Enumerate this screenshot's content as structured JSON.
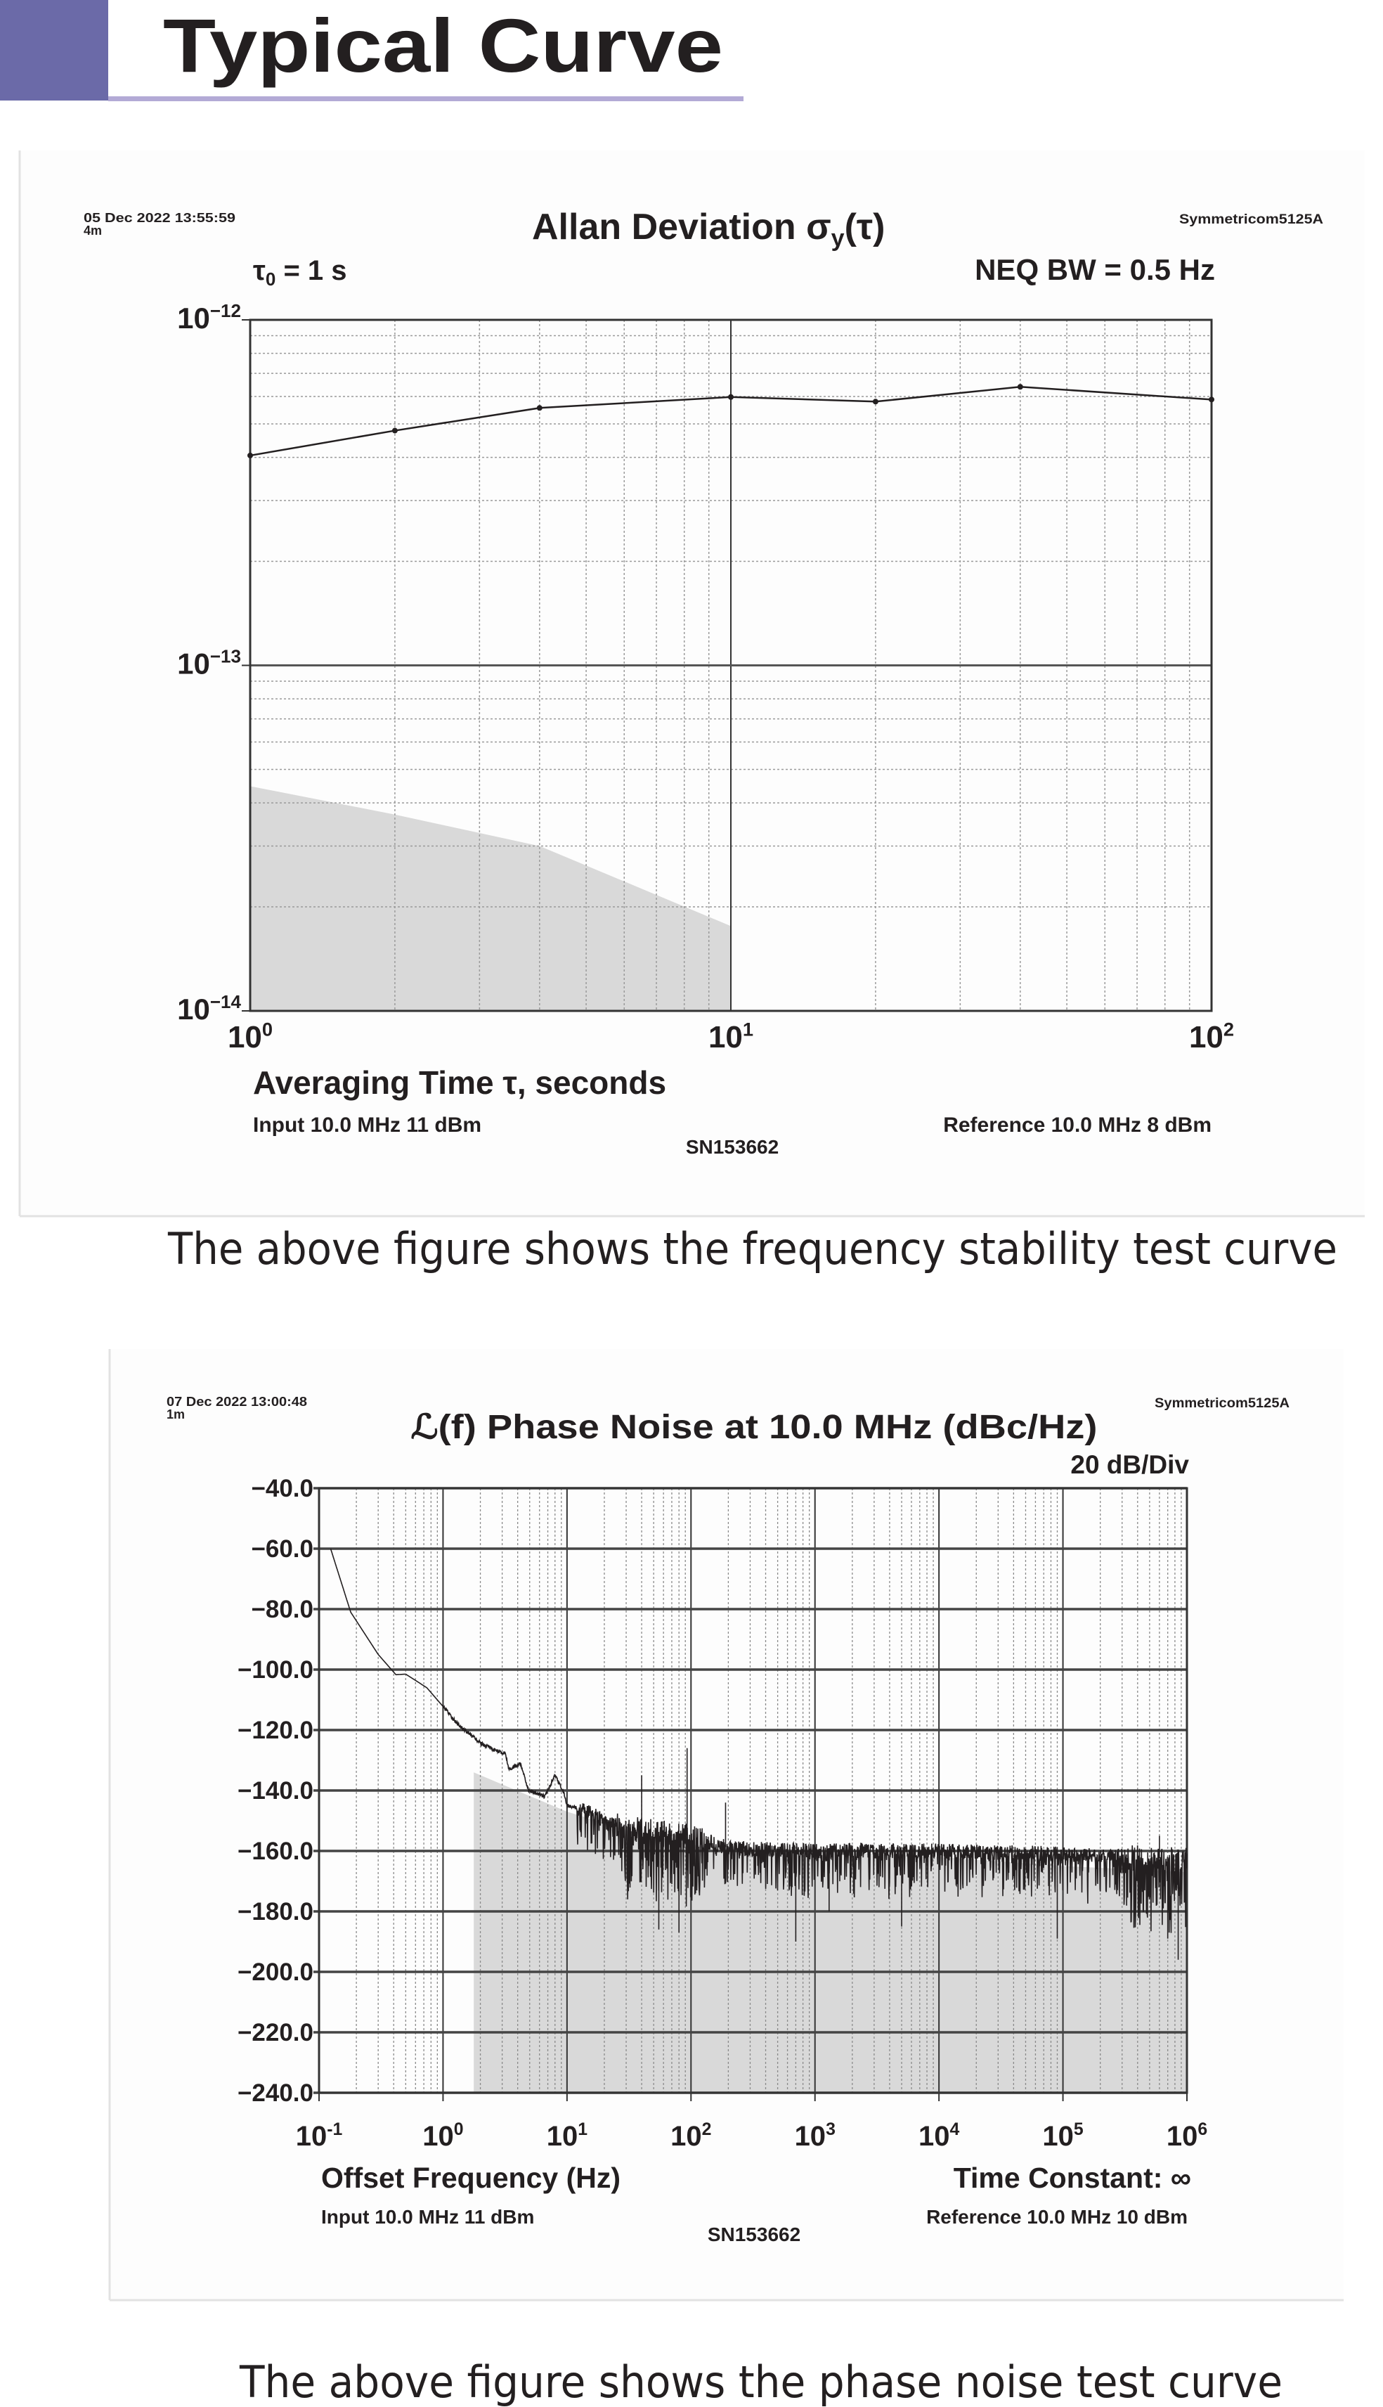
{
  "header": {
    "title": "Typical Curve",
    "accent_color": "#6b6aa8",
    "underline_color": "#b3aad6"
  },
  "captions": {
    "stability": "The above figure shows the frequency stability test curve",
    "phase_noise": "The above figure shows the phase noise test curve"
  },
  "chart_data": [
    {
      "type": "line",
      "title": "Allan Deviation σ",
      "title_sub": "y",
      "title_tail": "(τ)",
      "timestamp": "05 Dec 2022 13:55:59",
      "duration": "4m",
      "instrument": "Symmetricom5125A",
      "tau0_symbol": "τ",
      "tau0_sub": "0",
      "tau0_value": " = 1 s",
      "bandwidth": "NEQ BW = 0.5 Hz",
      "xlabel": "Averaging Time τ, seconds",
      "input": "Input 10.0 MHz 11 dBm",
      "reference": "Reference 10.0 MHz 8 dBm",
      "serial": "SN153662",
      "x_scale": "log",
      "y_scale": "log",
      "xlim": [
        1,
        100
      ],
      "ylim": [
        1e-14,
        1e-12
      ],
      "grid": true,
      "x_ticks": [
        {
          "base": "10",
          "exp": "0"
        },
        {
          "base": "10",
          "exp": "1"
        },
        {
          "base": "10",
          "exp": "2"
        }
      ],
      "y_ticks": [
        {
          "base": "10",
          "exp": "−12"
        },
        {
          "base": "10",
          "exp": "−13"
        },
        {
          "base": "10",
          "exp": "−14"
        }
      ],
      "series": [
        {
          "x": [
            1,
            2,
            4,
            10,
            20,
            40,
            100
          ],
          "y": [
            4.05e-13,
            4.78e-13,
            5.56e-13,
            5.98e-13,
            5.8e-13,
            6.4e-13,
            5.88e-13
          ],
          "color": "#231f20"
        }
      ],
      "noise_floor": {
        "x": [
          1,
          2,
          4,
          10
        ],
        "y": [
          4.47e-14,
          3.7e-14,
          3e-14,
          1.76e-14
        ],
        "color": "#d9d9d9"
      }
    },
    {
      "type": "line",
      "title": "ℒ(f) Phase Noise at 10.0 MHz (dBc/Hz)",
      "timestamp": "07 Dec 2022 13:00:48",
      "duration": "1m",
      "instrument": "Symmetricom5125A",
      "scale": "20 dB/Div",
      "xlabel": "Offset Frequency (Hz)",
      "time_constant": "Time Constant: ∞",
      "input": "Input 10.0 MHz 11 dBm",
      "reference": "Reference 10.0 MHz 10 dBm",
      "serial": "SN153662",
      "x_scale": "log",
      "xlim": [
        0.1,
        1000000
      ],
      "ylim": [
        -240,
        -40
      ],
      "grid": true,
      "x_ticks": [
        {
          "base": "10",
          "exp": "-1"
        },
        {
          "base": "10",
          "exp": "0"
        },
        {
          "base": "10",
          "exp": "1"
        },
        {
          "base": "10",
          "exp": "2"
        },
        {
          "base": "10",
          "exp": "3"
        },
        {
          "base": "10",
          "exp": "4"
        },
        {
          "base": "10",
          "exp": "5"
        },
        {
          "base": "10",
          "exp": "6"
        }
      ],
      "y_ticks": [
        "-40.0",
        "-60.0",
        "-80.0",
        "-100.0",
        "-120.0",
        "-140.0",
        "-160.0",
        "-180.0",
        "-200.0",
        "-220.0",
        "-240.0"
      ],
      "series": [
        {
          "x": [
            0.124,
            0.18,
            0.3,
            0.417,
            0.5,
            0.74,
            0.99,
            1.33,
            2.05,
            2.75,
            3.2,
            3.4,
            4.2,
            4.9,
            6.6,
            8,
            9.5,
            10,
            15.8,
            21,
            40,
            100,
            200,
            1000,
            10000,
            100000,
            400000,
            1000000
          ],
          "y": [
            -60,
            -81,
            -95,
            -101.7,
            -101.5,
            -106,
            -112,
            -118.3,
            -124.6,
            -127,
            -128,
            -133,
            -131,
            -140,
            -142,
            -135,
            -141,
            -145,
            -147,
            -151,
            -153,
            -155,
            -159,
            -160,
            -160,
            -161,
            -162,
            -163
          ],
          "color": "#231f20"
        }
      ],
      "spikes": [
        {
          "x": 40,
          "y": -135
        },
        {
          "x": 93,
          "y": -126
        },
        {
          "x": 190,
          "y": -144
        },
        {
          "x": 55,
          "y": -186
        },
        {
          "x": 80,
          "y": -187
        },
        {
          "x": 700,
          "y": -190
        },
        {
          "x": 1300,
          "y": -180
        },
        {
          "x": 5000,
          "y": -185
        },
        {
          "x": 90000,
          "y": -189
        },
        {
          "x": 700000,
          "y": -189
        },
        {
          "x": 850000,
          "y": -196
        },
        {
          "x": 600000,
          "y": -155
        }
      ],
      "noise_floor": {
        "x": [
          1.77,
          3,
          10,
          30,
          100,
          1000,
          10000,
          100000,
          1000000
        ],
        "y": [
          -134,
          -138,
          -147,
          -153,
          -158,
          -160,
          -162,
          -165,
          -167
        ],
        "color": "#d9d9d9"
      }
    }
  ]
}
